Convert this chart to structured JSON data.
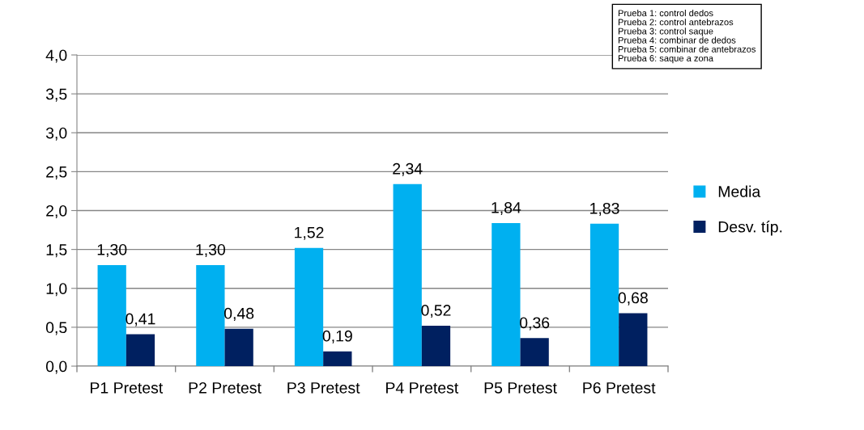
{
  "chart_data": {
    "type": "bar",
    "categories": [
      "P1 Pretest",
      "P2 Pretest",
      "P3 Pretest",
      "P4 Pretest",
      "P5 Pretest",
      "P6 Pretest"
    ],
    "series": [
      {
        "name": "Media",
        "color": "#00b0f0",
        "values": [
          1.3,
          1.3,
          1.52,
          2.34,
          1.84,
          1.83
        ],
        "value_labels": [
          "1,30",
          "1,30",
          "1,52",
          "2,34",
          "1,84",
          "1,83"
        ]
      },
      {
        "name": "Desv. típ.",
        "color": "#002060",
        "values": [
          0.41,
          0.48,
          0.19,
          0.52,
          0.36,
          0.68
        ],
        "value_labels": [
          "0,41",
          "0,48",
          "0,19",
          "0,52",
          "0,36",
          "0,68"
        ]
      }
    ],
    "ylim": [
      0,
      4
    ],
    "yticks": [
      {
        "value": 0,
        "label": "0,0"
      },
      {
        "value": 0.5,
        "label": "0,5"
      },
      {
        "value": 1,
        "label": "1,0"
      },
      {
        "value": 1.5,
        "label": "1,5"
      },
      {
        "value": 2,
        "label": "2,0"
      },
      {
        "value": 2.5,
        "label": "2,5"
      },
      {
        "value": 3,
        "label": "3,0"
      },
      {
        "value": 3.5,
        "label": "3,5"
      },
      {
        "value": 4,
        "label": "4,0"
      }
    ],
    "grid": "y",
    "legend": "right",
    "annotations": [
      "Prueba 1: control dedos",
      "Prueba 2: control antebrazos",
      "Prueba 3: control saque",
      "Prueba 4: combinar de dedos",
      "Prueba 5: combinar de antebrazos",
      "Prueba 6: saque a zona"
    ]
  }
}
